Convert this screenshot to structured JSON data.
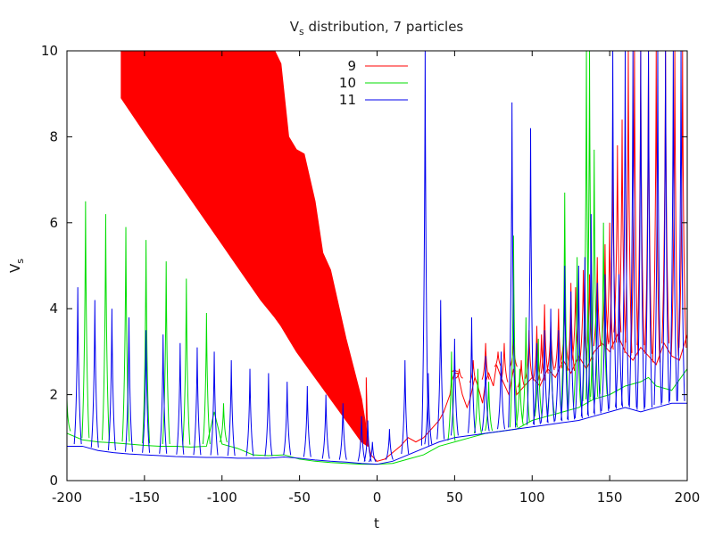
{
  "chart_data": {
    "type": "line",
    "title": {
      "main": "V",
      "sub": "s",
      "rest": " distribution, 7 particles"
    },
    "xlabel": "t",
    "ylabel": {
      "main": "V",
      "sub": "s"
    },
    "xlim": [
      -200,
      200
    ],
    "ylim": [
      0,
      10
    ],
    "xticks": [
      -200,
      -150,
      -100,
      -50,
      0,
      50,
      100,
      150,
      200
    ],
    "yticks": [
      0,
      2,
      4,
      6,
      8,
      10
    ],
    "xtick_labels": [
      "-200",
      "-150",
      "-100",
      "-50",
      "0",
      "50",
      "100",
      "150",
      "200"
    ],
    "ytick_labels": [
      "0",
      "2",
      "4",
      "6",
      "8",
      "10"
    ],
    "grid": false,
    "legend_position": "top-center",
    "series": [
      {
        "name": "9",
        "color": "#ff0000",
        "bands": [
          {
            "x": -165,
            "lower": 8.9,
            "upper": 10
          },
          {
            "x": -150,
            "lower": 8.1,
            "upper": 10
          },
          {
            "x": -125,
            "lower": 6.8,
            "upper": 10
          },
          {
            "x": -100,
            "lower": 5.5,
            "upper": 10
          },
          {
            "x": -75,
            "lower": 4.2,
            "upper": 10
          },
          {
            "x": -66,
            "lower": 3.8,
            "upper": 10
          },
          {
            "x": -62,
            "lower": 3.6,
            "upper": 9.7
          },
          {
            "x": -57,
            "lower": 3.3,
            "upper": 8.0
          },
          {
            "x": -52,
            "lower": 3.0,
            "upper": 7.7
          },
          {
            "x": -47,
            "lower": 2.75,
            "upper": 7.6
          },
          {
            "x": -40,
            "lower": 2.4,
            "upper": 6.5
          },
          {
            "x": -35,
            "lower": 2.15,
            "upper": 5.3
          },
          {
            "x": -30,
            "lower": 1.9,
            "upper": 4.9
          },
          {
            "x": -20,
            "lower": 1.4,
            "upper": 3.3
          },
          {
            "x": -10,
            "lower": 0.9,
            "upper": 1.9
          },
          {
            "x": -6,
            "lower": 0.8,
            "upper": 1.0
          }
        ],
        "points": [
          [
            -7,
            1.0
          ],
          [
            -7,
            2.4
          ],
          [
            -6,
            0.9
          ],
          [
            -4,
            0.6
          ],
          [
            0,
            0.45
          ],
          [
            5,
            0.5
          ],
          [
            10,
            0.65
          ],
          [
            15,
            0.8
          ],
          [
            20,
            1.0
          ],
          [
            25,
            0.9
          ],
          [
            30,
            1.0
          ],
          [
            35,
            1.2
          ],
          [
            40,
            1.4
          ],
          [
            43,
            1.6
          ],
          [
            45,
            1.8
          ],
          [
            47,
            2.0
          ],
          [
            48,
            2.3
          ],
          [
            50,
            2.5
          ],
          [
            52,
            2.5
          ],
          [
            55,
            2.0
          ],
          [
            58,
            1.7
          ],
          [
            60,
            1.9
          ],
          [
            63,
            2.4
          ],
          [
            65,
            2.2
          ],
          [
            68,
            1.8
          ],
          [
            70,
            2.3
          ],
          [
            72,
            2.5
          ],
          [
            75,
            2.2
          ],
          [
            77,
            2.7
          ],
          [
            80,
            2.4
          ],
          [
            85,
            2.0
          ],
          [
            88,
            2.6
          ],
          [
            90,
            2.0
          ],
          [
            95,
            2.2
          ],
          [
            100,
            2.4
          ],
          [
            105,
            2.2
          ],
          [
            110,
            2.6
          ],
          [
            115,
            2.4
          ],
          [
            120,
            2.8
          ],
          [
            125,
            2.5
          ],
          [
            130,
            2.9
          ],
          [
            135,
            2.6
          ],
          [
            140,
            3.0
          ],
          [
            145,
            3.2
          ],
          [
            150,
            3.0
          ],
          [
            155,
            3.4
          ],
          [
            160,
            3.0
          ],
          [
            165,
            2.8
          ],
          [
            170,
            3.1
          ],
          [
            175,
            2.9
          ],
          [
            180,
            2.7
          ],
          [
            185,
            3.2
          ],
          [
            190,
            2.9
          ],
          [
            195,
            2.8
          ],
          [
            200,
            3.4
          ]
        ],
        "spikes": [
          [
            50,
            2.6
          ],
          [
            53,
            2.6
          ],
          [
            62,
            2.8
          ],
          [
            70,
            3.2
          ],
          [
            78,
            3.0
          ],
          [
            82,
            3.2
          ],
          [
            88,
            3.3
          ],
          [
            93,
            2.8
          ],
          [
            98,
            3.5
          ],
          [
            103,
            3.6
          ],
          [
            106,
            3.4
          ],
          [
            108,
            4.1
          ],
          [
            112,
            3.7
          ],
          [
            117,
            4.0
          ],
          [
            121,
            4.2
          ],
          [
            125,
            4.6
          ],
          [
            128,
            4.5
          ],
          [
            133,
            4.9
          ],
          [
            137,
            4.8
          ],
          [
            142,
            5.2
          ],
          [
            147,
            5.5
          ],
          [
            150,
            6.0
          ],
          [
            152,
            7.6
          ],
          [
            155,
            7.8
          ],
          [
            158,
            8.4
          ],
          [
            162,
            10.0
          ],
          [
            166,
            10.0
          ],
          [
            170,
            10.0
          ],
          [
            175,
            10.0
          ],
          [
            180,
            10.0
          ],
          [
            186,
            10.0
          ],
          [
            192,
            10.0
          ],
          [
            197,
            10.0
          ]
        ]
      },
      {
        "name": "10",
        "color": "#00dd00",
        "points": [
          [
            -200,
            1.1
          ],
          [
            -190,
            0.95
          ],
          [
            -180,
            0.9
          ],
          [
            -170,
            0.88
          ],
          [
            -160,
            0.85
          ],
          [
            -150,
            0.82
          ],
          [
            -140,
            0.8
          ],
          [
            -130,
            0.8
          ],
          [
            -120,
            0.78
          ],
          [
            -110,
            0.8
          ],
          [
            -105,
            1.6
          ],
          [
            -100,
            0.85
          ],
          [
            -90,
            0.75
          ],
          [
            -80,
            0.6
          ],
          [
            -70,
            0.58
          ],
          [
            -60,
            0.6
          ],
          [
            -50,
            0.5
          ],
          [
            -40,
            0.45
          ],
          [
            -30,
            0.42
          ],
          [
            -20,
            0.4
          ],
          [
            -10,
            0.38
          ],
          [
            0,
            0.38
          ],
          [
            10,
            0.4
          ],
          [
            20,
            0.5
          ],
          [
            30,
            0.6
          ],
          [
            40,
            0.8
          ],
          [
            50,
            0.9
          ],
          [
            60,
            1.0
          ],
          [
            70,
            1.1
          ],
          [
            80,
            1.15
          ],
          [
            90,
            1.2
          ],
          [
            100,
            1.4
          ],
          [
            110,
            1.5
          ],
          [
            120,
            1.6
          ],
          [
            130,
            1.7
          ],
          [
            140,
            1.9
          ],
          [
            150,
            2.0
          ],
          [
            160,
            2.2
          ],
          [
            170,
            2.3
          ],
          [
            175,
            2.4
          ],
          [
            180,
            2.2
          ],
          [
            190,
            2.1
          ],
          [
            200,
            2.6
          ]
        ],
        "spikes": [
          [
            -200,
            1.9
          ],
          [
            -188,
            6.5
          ],
          [
            -175,
            6.2
          ],
          [
            -162,
            5.9
          ],
          [
            -149,
            5.6
          ],
          [
            -136,
            5.1
          ],
          [
            -123,
            4.7
          ],
          [
            -110,
            3.9
          ],
          [
            -99,
            1.8
          ],
          [
            48,
            3.0
          ],
          [
            65,
            2.6
          ],
          [
            72,
            2.3
          ],
          [
            88,
            5.7
          ],
          [
            92,
            2.6
          ],
          [
            96,
            3.8
          ],
          [
            104,
            3.3
          ],
          [
            112,
            3.4
          ],
          [
            121,
            6.7
          ],
          [
            129,
            5.2
          ],
          [
            135,
            10.0
          ],
          [
            137,
            10.0
          ],
          [
            140,
            7.7
          ],
          [
            146,
            6.0
          ]
        ]
      },
      {
        "name": "11",
        "color": "#0000ee",
        "points": [
          [
            -200,
            0.8
          ],
          [
            -190,
            0.8
          ],
          [
            -180,
            0.7
          ],
          [
            -170,
            0.65
          ],
          [
            -160,
            0.62
          ],
          [
            -150,
            0.6
          ],
          [
            -140,
            0.58
          ],
          [
            -130,
            0.56
          ],
          [
            -120,
            0.55
          ],
          [
            -110,
            0.54
          ],
          [
            -100,
            0.54
          ],
          [
            -90,
            0.52
          ],
          [
            -80,
            0.52
          ],
          [
            -70,
            0.52
          ],
          [
            -60,
            0.55
          ],
          [
            -50,
            0.52
          ],
          [
            -40,
            0.48
          ],
          [
            -30,
            0.45
          ],
          [
            -20,
            0.43
          ],
          [
            -10,
            0.4
          ],
          [
            0,
            0.38
          ],
          [
            10,
            0.45
          ],
          [
            20,
            0.6
          ],
          [
            30,
            0.75
          ],
          [
            40,
            0.9
          ],
          [
            50,
            1.0
          ],
          [
            60,
            1.05
          ],
          [
            70,
            1.1
          ],
          [
            80,
            1.15
          ],
          [
            90,
            1.2
          ],
          [
            100,
            1.25
          ],
          [
            110,
            1.3
          ],
          [
            120,
            1.35
          ],
          [
            130,
            1.4
          ],
          [
            140,
            1.5
          ],
          [
            150,
            1.6
          ],
          [
            160,
            1.7
          ],
          [
            170,
            1.6
          ],
          [
            180,
            1.7
          ],
          [
            190,
            1.8
          ],
          [
            200,
            1.8
          ]
        ],
        "spikes": [
          [
            -193,
            4.5
          ],
          [
            -182,
            4.2
          ],
          [
            -171,
            4.0
          ],
          [
            -160,
            3.8
          ],
          [
            -149,
            3.5
          ],
          [
            -138,
            3.4
          ],
          [
            -127,
            3.2
          ],
          [
            -116,
            3.1
          ],
          [
            -105,
            3.0
          ],
          [
            -94,
            2.8
          ],
          [
            -82,
            2.6
          ],
          [
            -70,
            2.5
          ],
          [
            -58,
            2.3
          ],
          [
            -45,
            2.2
          ],
          [
            -33,
            2.0
          ],
          [
            -22,
            1.8
          ],
          [
            -10,
            1.5
          ],
          [
            -6,
            1.4
          ],
          [
            -3,
            0.9
          ],
          [
            8,
            1.2
          ],
          [
            18,
            2.8
          ],
          [
            31,
            10.0
          ],
          [
            33,
            2.5
          ],
          [
            41,
            4.2
          ],
          [
            50,
            3.3
          ],
          [
            61,
            3.8
          ],
          [
            70,
            2.9
          ],
          [
            80,
            3.0
          ],
          [
            87,
            8.8
          ],
          [
            99,
            8.2
          ],
          [
            103,
            3.2
          ],
          [
            108,
            3.5
          ],
          [
            112,
            4.0
          ],
          [
            117,
            3.5
          ],
          [
            121,
            5.0
          ],
          [
            125,
            4.4
          ],
          [
            130,
            5.0
          ],
          [
            134,
            5.2
          ],
          [
            138,
            6.2
          ],
          [
            142,
            4.6
          ],
          [
            147,
            4.8
          ],
          [
            152,
            10.0
          ],
          [
            156,
            4.8
          ],
          [
            160,
            10.0
          ],
          [
            165,
            10.0
          ],
          [
            170,
            10.0
          ],
          [
            175,
            10.0
          ],
          [
            181,
            10.0
          ],
          [
            186,
            10.0
          ],
          [
            191,
            10.0
          ],
          [
            196,
            10.0
          ]
        ]
      }
    ]
  }
}
